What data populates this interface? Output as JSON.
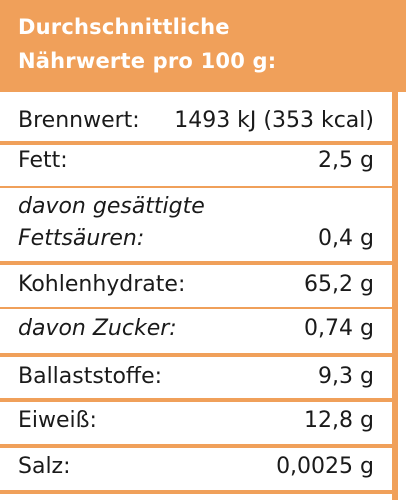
{
  "header": {
    "line1": "Durchschnittliche",
    "line2": "Nährwerte pro 100 g:"
  },
  "rows": [
    {
      "label": "Brennwert:",
      "value": "1493 kJ (353 kcal)"
    },
    {
      "label": "Fett:",
      "value": "2,5 g"
    },
    {
      "label_line1": "davon gesättigte",
      "label_line2": "Fettsäuren:",
      "value": "0,4 g"
    },
    {
      "label": "Kohlenhydrate:",
      "value": "65,2 g"
    },
    {
      "label": "davon Zucker:",
      "value": "0,74 g"
    },
    {
      "label": "Ballaststoffe:",
      "value": "9,3 g"
    },
    {
      "label": "Eiweiß:",
      "value": "12,8 g"
    },
    {
      "label": "Salz:",
      "value": "0,0025 g"
    }
  ],
  "colors": {
    "accent": "#f0a05a",
    "text": "#1a1a1a",
    "header_text": "#ffffff"
  }
}
